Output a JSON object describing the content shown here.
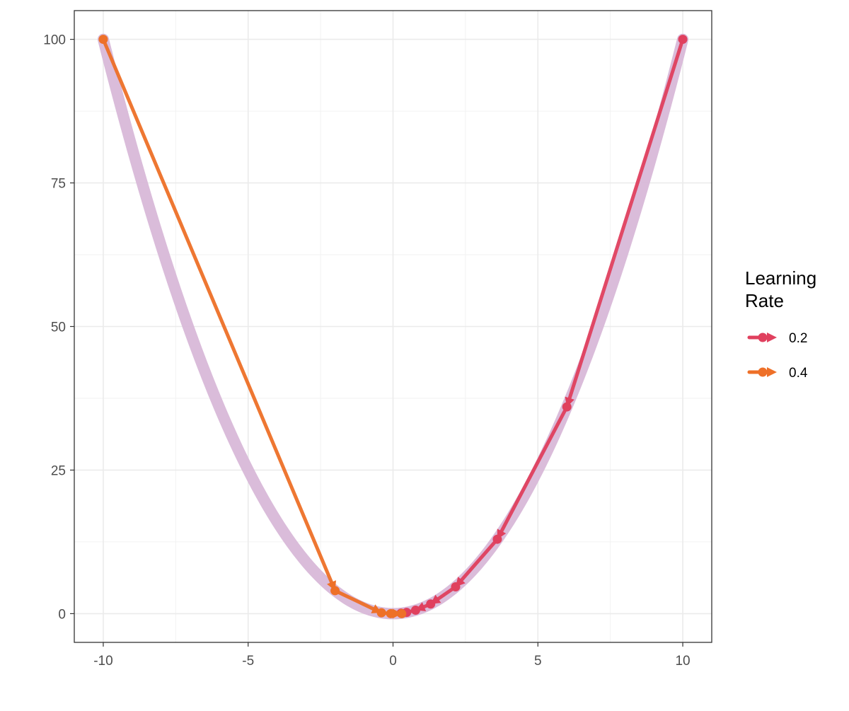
{
  "chart_data": {
    "type": "line",
    "title": "",
    "xlabel": "",
    "ylabel": "",
    "xlim": [
      -11,
      11
    ],
    "ylim": [
      -5,
      105
    ],
    "x_ticks": [
      -10,
      -5,
      0,
      5,
      10
    ],
    "y_ticks": [
      0,
      25,
      50,
      75,
      100
    ],
    "x_tick_labels": [
      "-10",
      "-5",
      "0",
      "5",
      "10"
    ],
    "y_tick_labels": [
      "0",
      "25",
      "50",
      "75",
      "100"
    ],
    "grid": true,
    "background_curve": {
      "function": "y = x^2",
      "x_range": [
        -10,
        10
      ],
      "color": "#d8b8d8"
    },
    "legend": {
      "title_lines": [
        "Learning",
        "Rate"
      ],
      "placement": "right"
    },
    "series": [
      {
        "name": "0.2",
        "color": "#e0405e",
        "points": [
          {
            "x": 10,
            "y": 100
          },
          {
            "x": 6,
            "y": 36
          },
          {
            "x": 3.6,
            "y": 12.96
          },
          {
            "x": 2.16,
            "y": 4.67
          },
          {
            "x": 1.3,
            "y": 1.68
          },
          {
            "x": 0.78,
            "y": 0.6
          },
          {
            "x": 0.47,
            "y": 0.22
          },
          {
            "x": 0.28,
            "y": 0.08
          }
        ]
      },
      {
        "name": "0.4",
        "color": "#ee7028",
        "points": [
          {
            "x": -10,
            "y": 100
          },
          {
            "x": -2,
            "y": 4
          },
          {
            "x": -0.4,
            "y": 0.16
          },
          {
            "x": -0.08,
            "y": 0.01
          },
          {
            "x": 0.3,
            "y": 0
          }
        ]
      }
    ]
  }
}
